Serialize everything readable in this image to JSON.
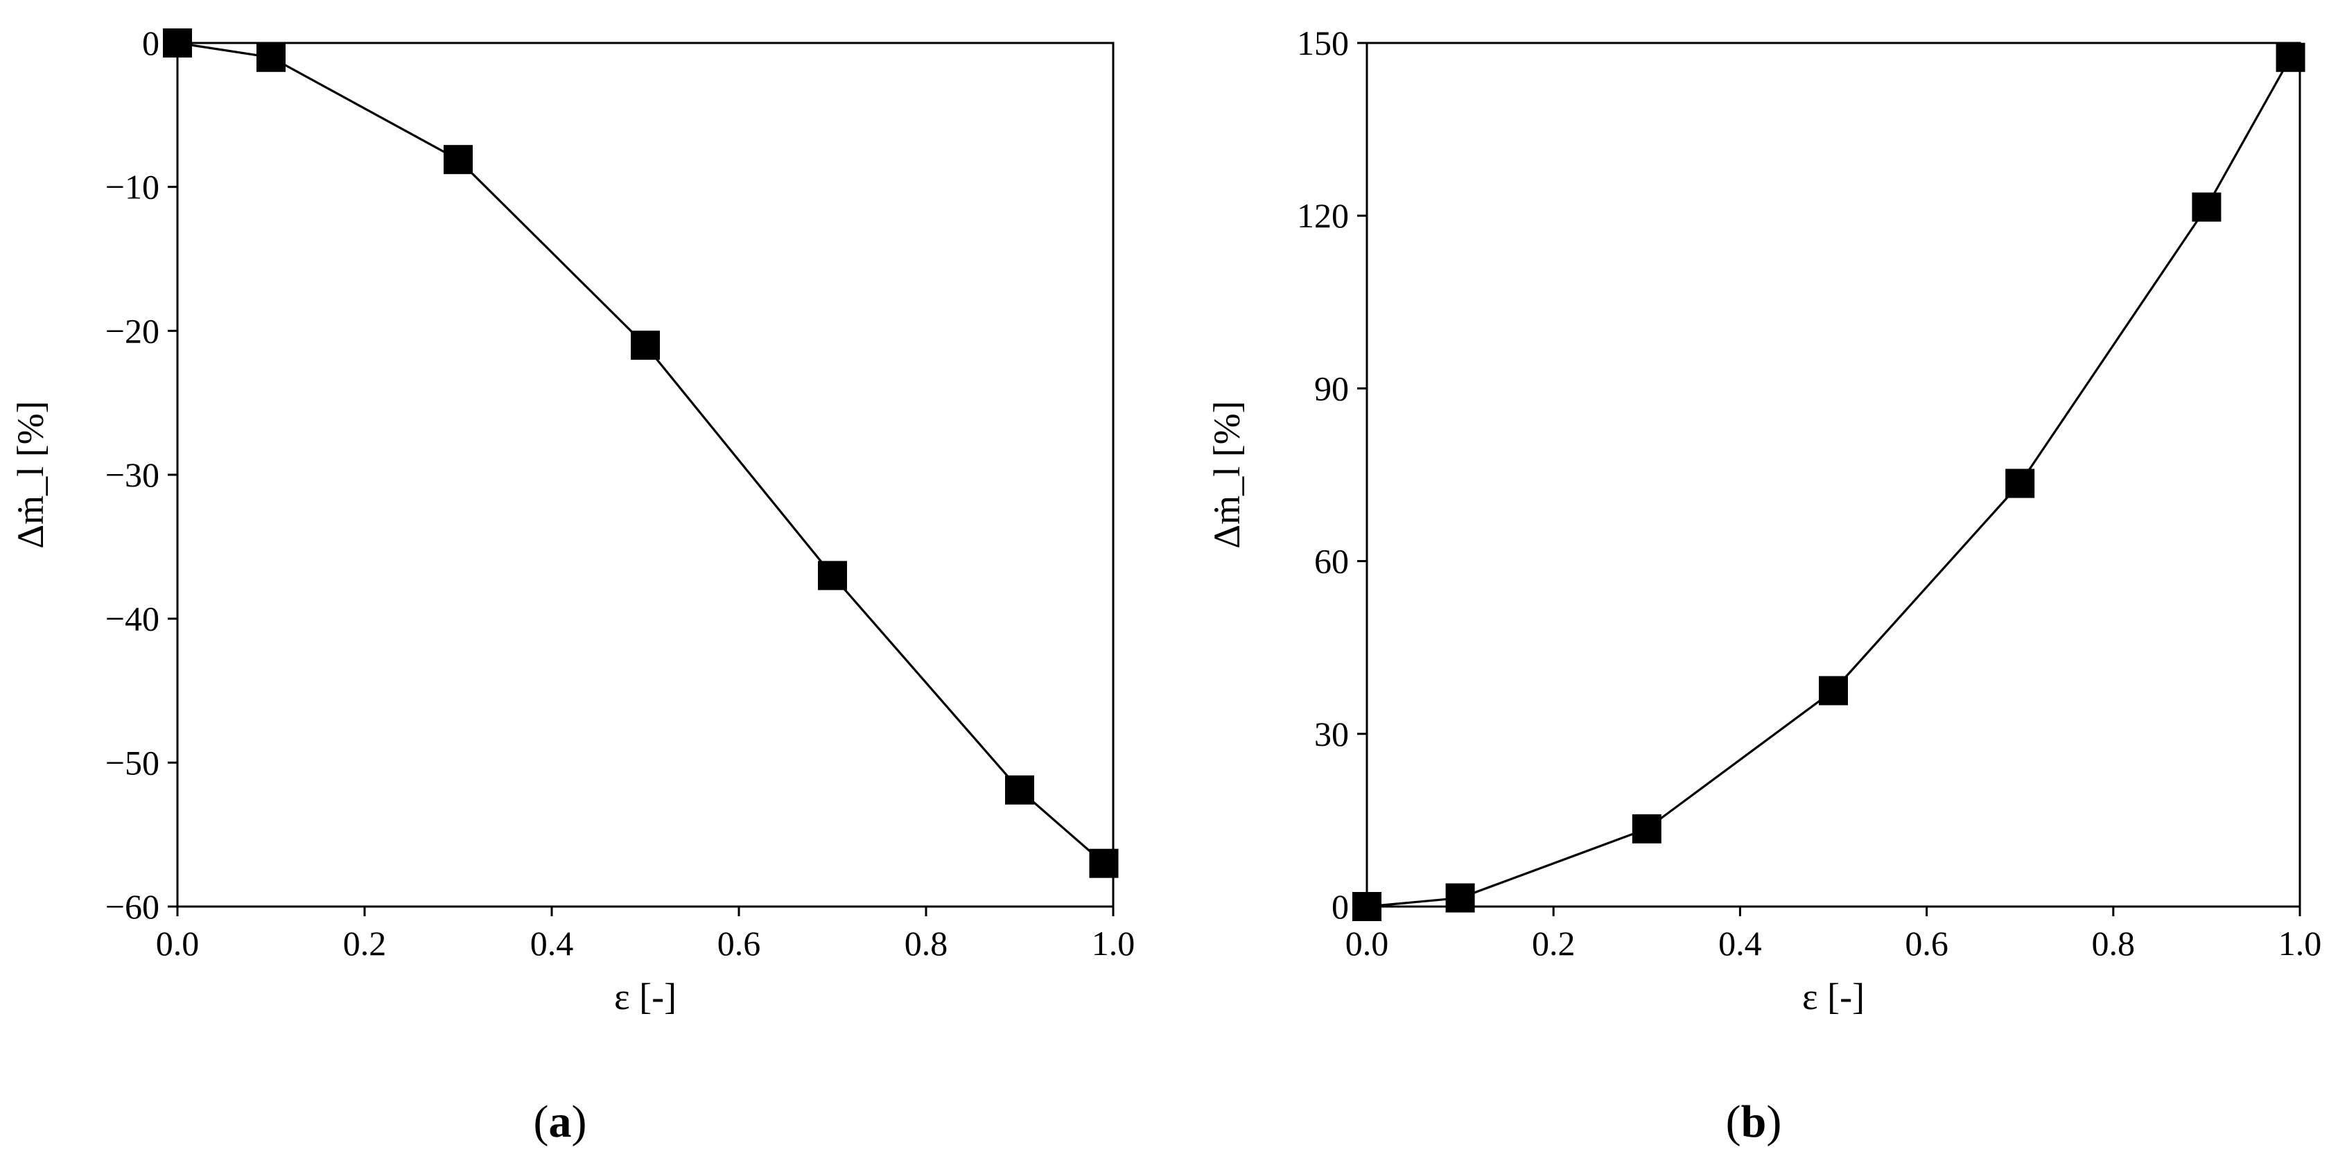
{
  "chart_data": [
    {
      "type": "line",
      "panel_label": "(a)",
      "panel_letter": "a",
      "xlabel": "ε [-]",
      "ylabel": "Δṁ_l [%]",
      "xlim": [
        0.0,
        1.0
      ],
      "ylim": [
        -60,
        0
      ],
      "xticks": [
        0.0,
        0.2,
        0.4,
        0.6,
        0.8,
        1.0
      ],
      "xtick_labels": [
        "0.0",
        "0.2",
        "0.4",
        "0.6",
        "0.8",
        "1.0"
      ],
      "yticks": [
        0,
        -10,
        -20,
        -30,
        -40,
        -50,
        -60
      ],
      "ytick_labels": [
        "0",
        "−10",
        "−20",
        "−30",
        "−40",
        "−50",
        "−60"
      ],
      "grid": false,
      "marker": "square",
      "color": "#000000",
      "series": [
        {
          "x": [
            0.0,
            0.1,
            0.3,
            0.5,
            0.7,
            0.9,
            0.99
          ],
          "y": [
            0.0,
            -1.0,
            -8.1,
            -21.0,
            -37.0,
            -51.9,
            -57.0
          ]
        }
      ]
    },
    {
      "type": "line",
      "panel_label": "(b)",
      "panel_letter": "b",
      "xlabel": "ε [-]",
      "ylabel": "Δṁ_l [%]",
      "xlim": [
        0.0,
        1.0
      ],
      "ylim": [
        0,
        150
      ],
      "xticks": [
        0.0,
        0.2,
        0.4,
        0.6,
        0.8,
        1.0
      ],
      "xtick_labels": [
        "0.0",
        "0.2",
        "0.4",
        "0.6",
        "0.8",
        "1.0"
      ],
      "yticks": [
        0,
        30,
        60,
        90,
        120,
        150
      ],
      "ytick_labels": [
        "0",
        "30",
        "60",
        "90",
        "120",
        "150"
      ],
      "grid": false,
      "marker": "square",
      "color": "#000000",
      "series": [
        {
          "x": [
            0.0,
            0.1,
            0.3,
            0.5,
            0.7,
            0.9,
            0.99
          ],
          "y": [
            0.0,
            1.5,
            13.5,
            37.5,
            73.5,
            121.5,
            147.5
          ]
        }
      ]
    }
  ]
}
